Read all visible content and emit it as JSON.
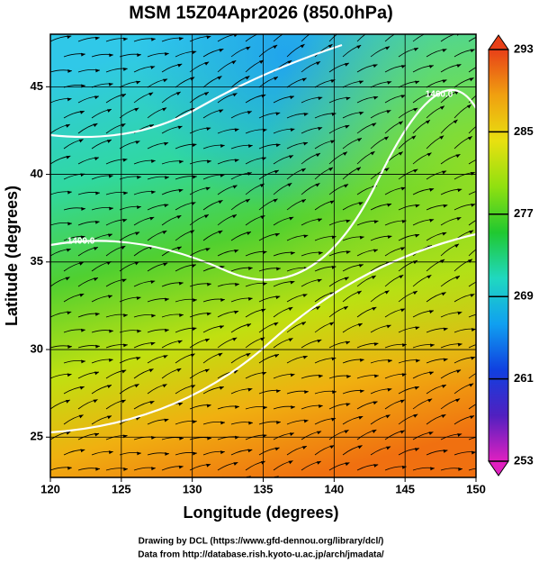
{
  "chart_data": {
    "type": "field-map",
    "title": "MSM 15Z04Apr2026 (850.0hPa)",
    "x_label": "Longitude (degrees)",
    "y_label": "Latitude  (degrees)",
    "xlim": [
      120,
      150
    ],
    "xticks": [
      120,
      125,
      130,
      135,
      140,
      145,
      150
    ],
    "ylim": [
      22.7,
      48
    ],
    "yticks": [
      25,
      30,
      35,
      40,
      45
    ],
    "grid": true,
    "colorbar": {
      "range": [
        253,
        293
      ],
      "ticks": [
        253,
        261,
        269,
        277,
        285,
        293
      ],
      "colors": [
        "#e020c0",
        "#5020c0",
        "#1040e0",
        "#10a0f0",
        "#20d8c0",
        "#20c830",
        "#90e010",
        "#e8e010",
        "#f0a010",
        "#e84018"
      ]
    },
    "contour_labels": [
      "1400.0",
      "1460.0"
    ],
    "footer": [
      "Drawing by DCL (https://www.gfd-dennou.org/library/dcl/)",
      "Data from http://database.rish.kyoto-u.ac.jp/arch/jmadata/"
    ]
  }
}
